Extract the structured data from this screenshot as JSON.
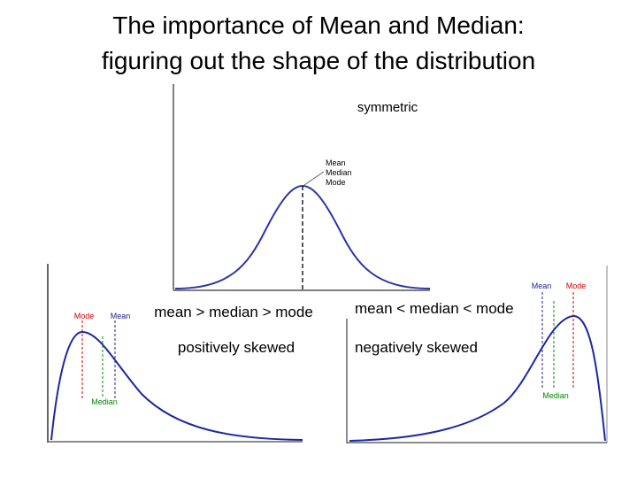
{
  "header": {
    "title_lines": [
      "The importance of Mean and Median:",
      "figuring out the shape of the distribution"
    ]
  },
  "symmetric": {
    "caption": "symmetric",
    "labels": [
      "Mean",
      "Median",
      "Mode"
    ]
  },
  "positive": {
    "relation": "mean > median > mode",
    "caption": "positively skewed",
    "mode_label": "Mode",
    "mean_label": "Mean",
    "median_label": "Median"
  },
  "negative": {
    "relation": "mean < median < mode",
    "caption": "negatively skewed",
    "mean_label": "Mean",
    "mode_label": "Mode",
    "median_label": "Median"
  }
}
